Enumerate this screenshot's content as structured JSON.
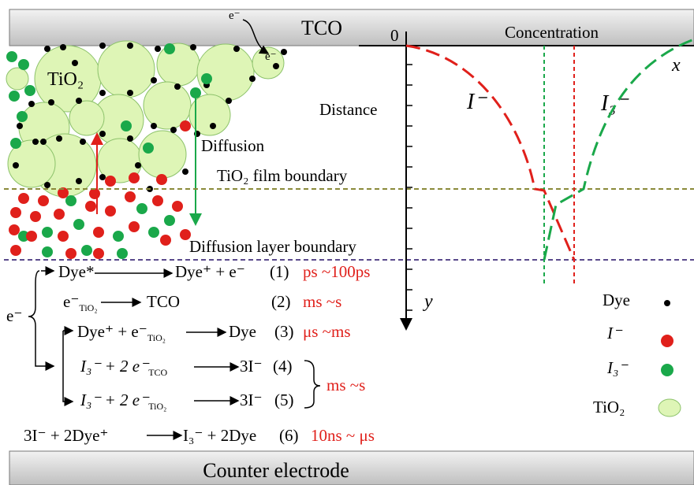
{
  "electrode_top": "TCO",
  "electrode_bottom": "Counter electrode",
  "electron_labels": [
    "e⁻",
    "e⁻"
  ],
  "film_label": "TiO₂",
  "diffusion_label": "Diffusion",
  "boundaries": [
    "TiO₂ film boundary",
    "Diffusion layer boundary"
  ],
  "graph": {
    "origin": "0",
    "x_label": "Concentration",
    "x_axis": "x",
    "y_label": "Distance",
    "y_axis": "y",
    "curves": [
      "I⁻",
      "I₃⁻"
    ]
  },
  "reactions": {
    "source": "e⁻",
    "shared_time": "ms ~s",
    "items": [
      {
        "left": "Dye*",
        "right": "Dye⁺ +  e⁻",
        "number": "(1)",
        "time": "ps ~100ps"
      },
      {
        "left": "e⁻",
        "left_sub": "TiO₂",
        "right": "TCO",
        "number": "(2)",
        "time": "ms ~s"
      },
      {
        "left": "Dye⁺ + e⁻",
        "left_sub": "TiO₂",
        "right": "Dye",
        "number": "(3)",
        "time": "μs ~ms"
      },
      {
        "left": "I₃⁻  + 2 e⁻",
        "left_sub": "TCO",
        "right": "3I⁻",
        "number": "(4)"
      },
      {
        "left": "I₃⁻  + 2 e⁻",
        "left_sub": "TiO₂",
        "right": "3I⁻",
        "number": "(5)"
      },
      {
        "left": "3I⁻  + 2Dye⁺",
        "right": "I₃⁻ + 2Dye",
        "number": "(6)",
        "time": "10ns ~ μs"
      }
    ]
  },
  "legend": [
    "Dye",
    "I⁻",
    "I₃⁻",
    "TiO₂"
  ]
}
